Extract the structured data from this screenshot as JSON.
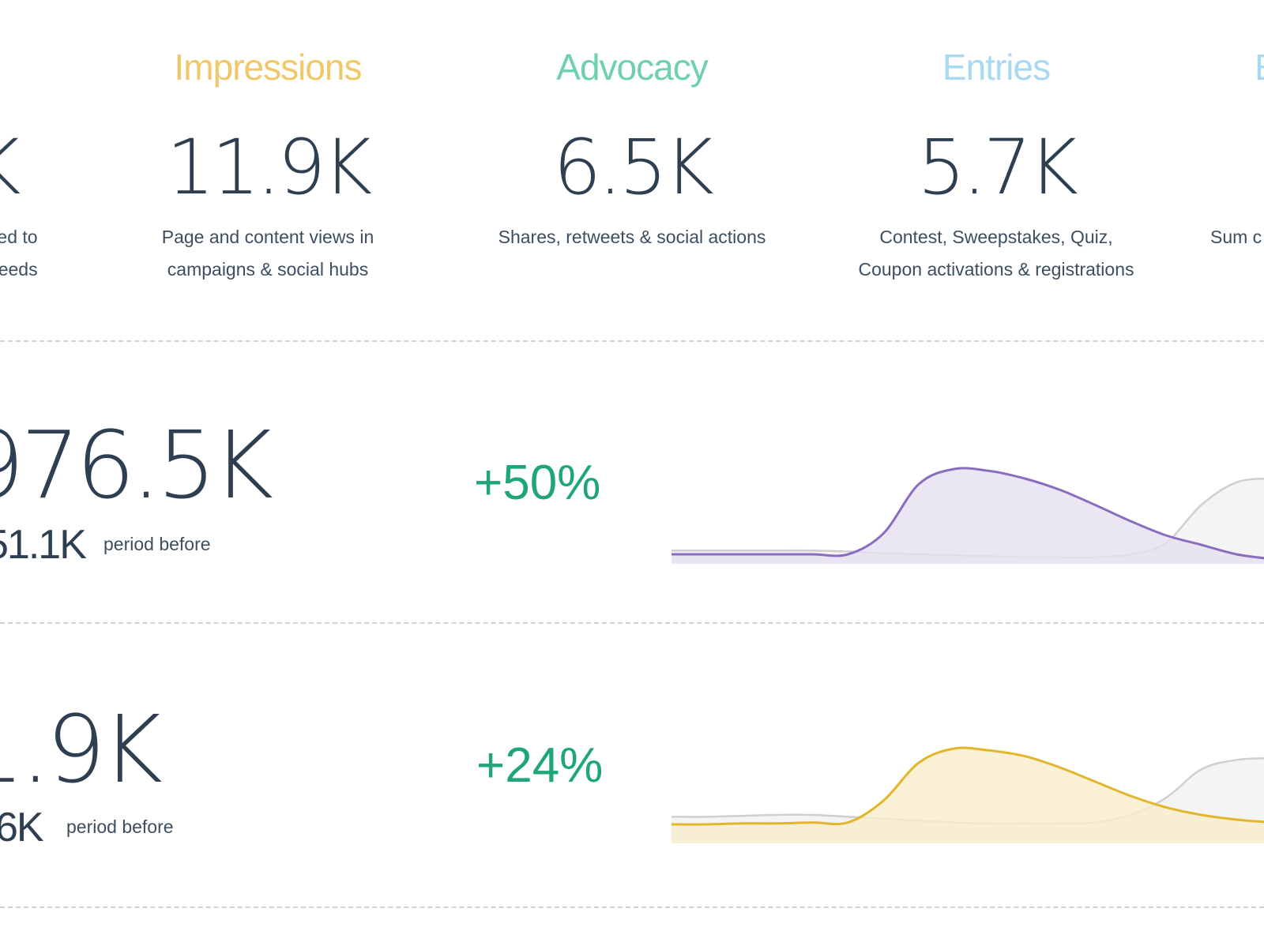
{
  "colors": {
    "impressions": "#f0c86a",
    "advocacy": "#6fd0b0",
    "entries": "#a9d8f2",
    "fifth": "#a9d8f2",
    "positive_change": "#1fa57a",
    "row1_series": "#8a6dbf",
    "row1_fill": "#e6e0f0",
    "row2_series": "#e3b52c",
    "row2_fill": "#f8ecca",
    "prior_series": "#cfcfcf",
    "prior_fill": "#efefef"
  },
  "categories": [
    {
      "desc_lines": [
        "ed to",
        "eeds"
      ],
      "value": "K"
    },
    {
      "title": "Impressions",
      "value": "11.9K",
      "desc_lines": [
        "Page and content views in",
        "campaigns & social hubs"
      ]
    },
    {
      "title": "Advocacy",
      "value": "6.5K",
      "desc_lines": [
        "Shares, retweets & social actions"
      ]
    },
    {
      "title": "Entries",
      "value": "5.7K",
      "desc_lines": [
        "Contest, Sweepstakes, Quiz,",
        "Coupon activations & registrations"
      ]
    },
    {
      "title": "E",
      "desc_lines": [
        "Sum c"
      ]
    }
  ],
  "rows": [
    {
      "value": "976.5K",
      "prev_value": "51.1K",
      "prev_label": "period before",
      "change": "+50%",
      "sparkline": {
        "current": [
          0.1,
          0.1,
          0.1,
          0.1,
          0.1,
          0.1,
          0.32,
          0.84,
          1.0,
          0.98,
          0.9,
          0.78,
          0.62,
          0.45,
          0.3,
          0.2,
          0.1,
          0.05
        ],
        "prior": [
          0.14,
          0.14,
          0.14,
          0.14,
          0.14,
          0.13,
          0.11,
          0.1,
          0.09,
          0.08,
          0.07,
          0.07,
          0.07,
          0.1,
          0.22,
          0.62,
          0.86,
          0.9
        ]
      }
    },
    {
      "value": "1.9K",
      "prev_value": "6K",
      "prev_label": "period before",
      "change": "+24%",
      "sparkline": {
        "current": [
          0.2,
          0.2,
          0.21,
          0.21,
          0.22,
          0.22,
          0.45,
          0.85,
          1.0,
          0.98,
          0.92,
          0.8,
          0.65,
          0.5,
          0.38,
          0.3,
          0.25,
          0.22
        ],
        "prior": [
          0.28,
          0.28,
          0.29,
          0.3,
          0.3,
          0.28,
          0.26,
          0.24,
          0.22,
          0.21,
          0.21,
          0.21,
          0.22,
          0.3,
          0.48,
          0.78,
          0.88,
          0.9
        ]
      }
    }
  ]
}
